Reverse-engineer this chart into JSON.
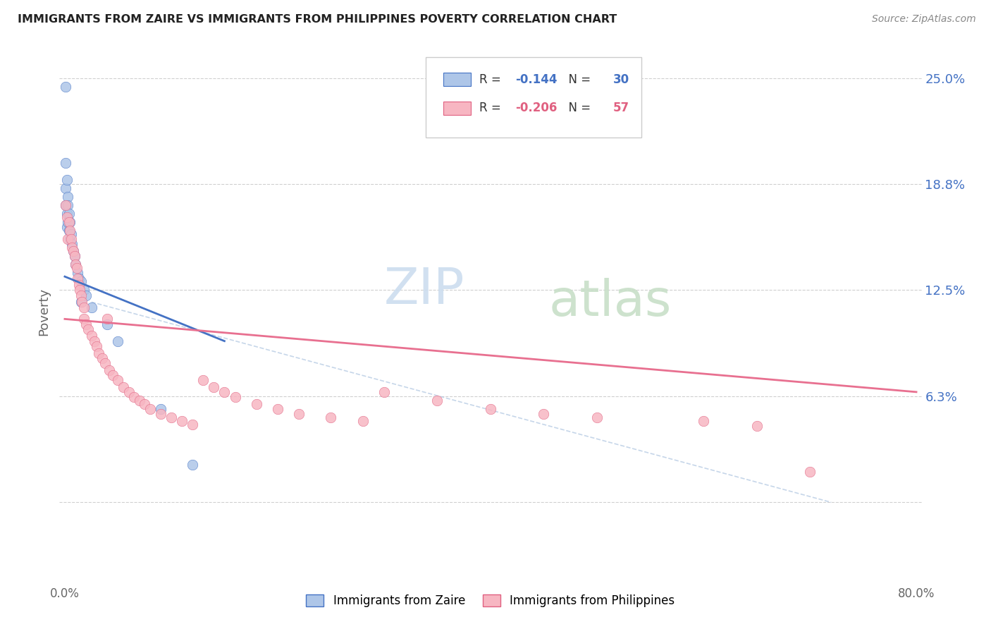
{
  "title": "IMMIGRANTS FROM ZAIRE VS IMMIGRANTS FROM PHILIPPINES POVERTY CORRELATION CHART",
  "source": "Source: ZipAtlas.com",
  "ylabel": "Poverty",
  "ytick_vals": [
    0.0,
    0.0625,
    0.125,
    0.1875,
    0.25
  ],
  "ytick_labels": [
    "",
    "6.3%",
    "12.5%",
    "18.8%",
    "25.0%"
  ],
  "xlim": [
    -0.005,
    0.805
  ],
  "ylim": [
    -0.045,
    0.27
  ],
  "legend_r_zaire": "-0.144",
  "legend_n_zaire": "30",
  "legend_r_phil": "-0.206",
  "legend_n_phil": "57",
  "color_zaire_fill": "#aec6e8",
  "color_zaire_edge": "#4472C4",
  "color_phil_fill": "#f7b6c2",
  "color_phil_edge": "#E06080",
  "color_zaire_line": "#4472C4",
  "color_phil_line": "#E87090",
  "color_dashed": "#b8cce4",
  "watermark_zip_color": "#ccddef",
  "watermark_atlas_color": "#c8dfc8",
  "zaire_x": [
    0.001,
    0.001,
    0.001,
    0.001,
    0.002,
    0.002,
    0.002,
    0.003,
    0.003,
    0.003,
    0.004,
    0.004,
    0.005,
    0.005,
    0.006,
    0.007,
    0.008,
    0.009,
    0.01,
    0.012,
    0.013,
    0.015,
    0.015,
    0.018,
    0.02,
    0.025,
    0.04,
    0.05,
    0.09,
    0.12
  ],
  "zaire_y": [
    0.245,
    0.2,
    0.185,
    0.175,
    0.19,
    0.17,
    0.162,
    0.18,
    0.175,
    0.165,
    0.17,
    0.16,
    0.165,
    0.155,
    0.158,
    0.152,
    0.148,
    0.145,
    0.14,
    0.135,
    0.132,
    0.13,
    0.118,
    0.125,
    0.122,
    0.115,
    0.105,
    0.095,
    0.055,
    0.022
  ],
  "phil_x": [
    0.001,
    0.002,
    0.003,
    0.004,
    0.005,
    0.006,
    0.007,
    0.008,
    0.009,
    0.01,
    0.011,
    0.012,
    0.013,
    0.014,
    0.015,
    0.016,
    0.018,
    0.018,
    0.02,
    0.022,
    0.025,
    0.028,
    0.03,
    0.032,
    0.035,
    0.038,
    0.04,
    0.042,
    0.045,
    0.05,
    0.055,
    0.06,
    0.065,
    0.07,
    0.075,
    0.08,
    0.09,
    0.1,
    0.11,
    0.12,
    0.13,
    0.14,
    0.15,
    0.16,
    0.18,
    0.2,
    0.22,
    0.25,
    0.28,
    0.3,
    0.35,
    0.4,
    0.45,
    0.5,
    0.6,
    0.65,
    0.7
  ],
  "phil_y": [
    0.175,
    0.168,
    0.155,
    0.165,
    0.16,
    0.155,
    0.15,
    0.148,
    0.145,
    0.14,
    0.138,
    0.132,
    0.128,
    0.125,
    0.122,
    0.118,
    0.115,
    0.108,
    0.105,
    0.102,
    0.098,
    0.095,
    0.092,
    0.088,
    0.085,
    0.082,
    0.108,
    0.078,
    0.075,
    0.072,
    0.068,
    0.065,
    0.062,
    0.06,
    0.058,
    0.055,
    0.052,
    0.05,
    0.048,
    0.046,
    0.072,
    0.068,
    0.065,
    0.062,
    0.058,
    0.055,
    0.052,
    0.05,
    0.048,
    0.065,
    0.06,
    0.055,
    0.052,
    0.05,
    0.048,
    0.045,
    0.018
  ],
  "zaire_line_x": [
    0.0,
    0.15
  ],
  "zaire_line_y": [
    0.133,
    0.095
  ],
  "phil_line_x": [
    0.0,
    0.8
  ],
  "phil_line_y": [
    0.108,
    0.065
  ],
  "dashed_line_x": [
    0.025,
    0.72
  ],
  "dashed_line_y": [
    0.118,
    0.0
  ]
}
